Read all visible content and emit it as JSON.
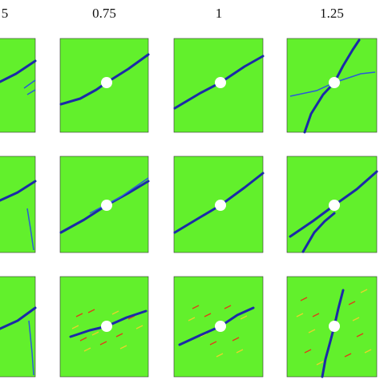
{
  "figure": {
    "column_headers": [
      "5",
      "0.75",
      "1",
      "1.25"
    ]
  }
}
